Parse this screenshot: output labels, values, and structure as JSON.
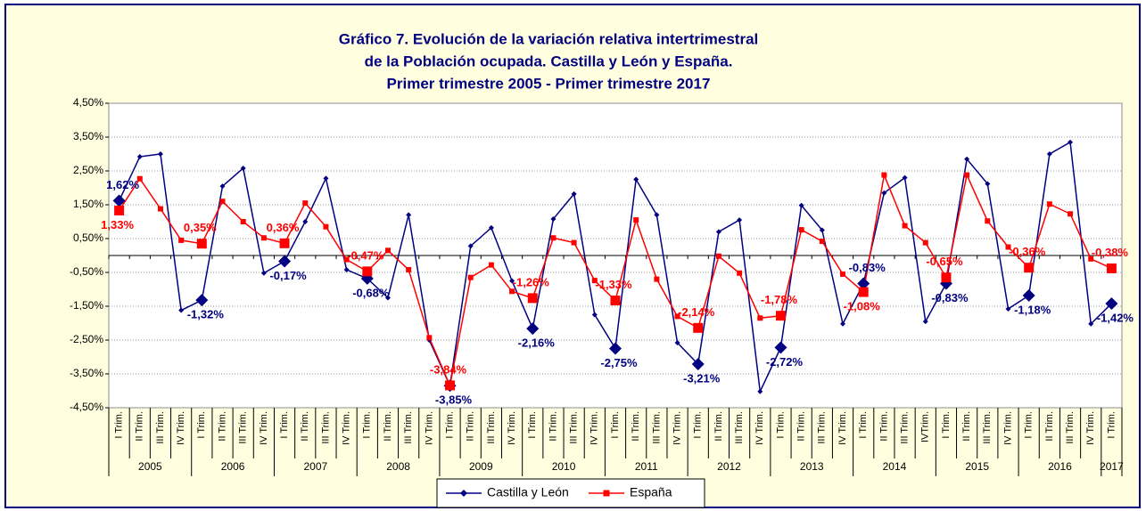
{
  "chart_data": {
    "type": "line",
    "title": [
      "Gráfico 7. Evolución de la variación relativa intertrimestral",
      "de la Población ocupada. Castilla  y León y España.",
      "Primer trimestre 2005 - Primer trimestre 2017"
    ],
    "categories": [
      "I Trim.",
      "II Trim.",
      "III Trim.",
      "IV Trim.",
      "I Trim.",
      "II Trim.",
      "III Trim.",
      "IV Trim.",
      "I Trim.",
      "II Trim.",
      "III Trim.",
      "IV Trim.",
      "I Trim.",
      "II Trim.",
      "III Trim.",
      "IV Trim.",
      "I Trim.",
      "II Trim.",
      "III Trim.",
      "IV Trim.",
      "I Trim.",
      "II Trim.",
      "III Trim.",
      "IV Trim.",
      "I Trim.",
      "II Trim.",
      "III Trim.",
      "IV Trim.",
      "I Trim.",
      "II Trim.",
      "III Trim.",
      "IV Trim.",
      "I Trim.",
      "II Trim.",
      "III Trim.",
      "IV Trim.",
      "I Trim.",
      "II Trim.",
      "III Trim.",
      "IVTrim.",
      "I Trim.",
      "II Trim.",
      "III Trim.",
      "IV Trim.",
      "I Trim.",
      "II Trim.",
      "III Trim.",
      "IV Trim.",
      "I Trim."
    ],
    "years": [
      "2005",
      "2006",
      "2007",
      "2008",
      "2009",
      "2010",
      "2011",
      "2012",
      "2013",
      "2014",
      "2015",
      "2016",
      "2017"
    ],
    "series": [
      {
        "name": "Castilla y León",
        "color": "#000080",
        "marker": "diamond",
        "values": [
          1.62,
          2.92,
          3.0,
          -1.62,
          -1.32,
          2.05,
          2.58,
          -0.52,
          -0.17,
          1.0,
          2.28,
          -0.42,
          -0.68,
          -1.25,
          1.2,
          -2.5,
          -3.85,
          0.28,
          0.82,
          -0.75,
          -2.16,
          1.08,
          1.82,
          -1.75,
          -2.75,
          2.25,
          1.2,
          -2.58,
          -3.21,
          0.7,
          1.05,
          -4.02,
          -2.72,
          1.48,
          0.75,
          -2.02,
          -0.83,
          1.85,
          2.3,
          -1.95,
          -0.83,
          2.85,
          2.12,
          -1.58,
          -1.18,
          3.0,
          3.35,
          -2.02,
          -1.42
        ],
        "value_labels": [
          "1,62%",
          null,
          null,
          null,
          "-1,32%",
          null,
          null,
          null,
          "-0,17%",
          null,
          null,
          null,
          "-0,68%",
          null,
          null,
          null,
          "-3,85%",
          null,
          null,
          null,
          "-2,16%",
          null,
          null,
          null,
          "-2,75%",
          null,
          null,
          null,
          "-3,21%",
          null,
          null,
          null,
          "-2,72%",
          null,
          null,
          null,
          "-0,83%",
          null,
          null,
          null,
          "-0,83%",
          null,
          null,
          null,
          "-1,18%",
          null,
          null,
          null,
          "-1,42%"
        ]
      },
      {
        "name": "España",
        "color": "#ff0000",
        "marker": "square",
        "values": [
          1.33,
          2.27,
          1.38,
          0.45,
          0.35,
          1.6,
          1.0,
          0.52,
          0.36,
          1.55,
          0.85,
          -0.12,
          -0.47,
          0.15,
          -0.42,
          -2.43,
          -3.84,
          -0.65,
          -0.28,
          -1.06,
          -1.26,
          0.52,
          0.38,
          -0.74,
          -1.33,
          1.05,
          -0.7,
          -1.8,
          -2.14,
          -0.02,
          -0.52,
          -1.85,
          -1.78,
          0.76,
          0.42,
          -0.55,
          -1.08,
          2.38,
          0.88,
          0.38,
          -0.65,
          2.38,
          1.02,
          0.25,
          -0.36,
          1.52,
          1.23,
          -0.1,
          -0.38
        ],
        "value_labels": [
          "1,33%",
          null,
          null,
          null,
          "0,35%",
          null,
          null,
          null,
          "0,36%",
          null,
          null,
          null,
          "-0,47%",
          null,
          null,
          null,
          "-3,84%",
          null,
          null,
          null,
          "-1,26%",
          null,
          null,
          null,
          "-1,33%",
          null,
          null,
          null,
          "-2,14%",
          null,
          null,
          null,
          "-1,78%",
          null,
          null,
          null,
          "-1,08%",
          null,
          null,
          null,
          "-0,65%",
          null,
          null,
          null,
          "-0,36%",
          null,
          null,
          null,
          "-0,38%"
        ]
      }
    ],
    "ylim": [
      -4.5,
      4.5
    ],
    "yticks": [
      {
        "value": -4.5,
        "label": "-4,50%"
      },
      {
        "value": -3.5,
        "label": "-3,50%"
      },
      {
        "value": -2.5,
        "label": "-2,50%"
      },
      {
        "value": -1.5,
        "label": "-1,50%"
      },
      {
        "value": -0.5,
        "label": "-0,50%"
      },
      {
        "value": 0.5,
        "label": "0,50%"
      },
      {
        "value": 1.5,
        "label": "1,50%"
      },
      {
        "value": 2.5,
        "label": "2,50%"
      },
      {
        "value": 3.5,
        "label": "3,50%"
      },
      {
        "value": 4.5,
        "label": "4,50%"
      }
    ],
    "grid": true,
    "legend": "bottom"
  }
}
